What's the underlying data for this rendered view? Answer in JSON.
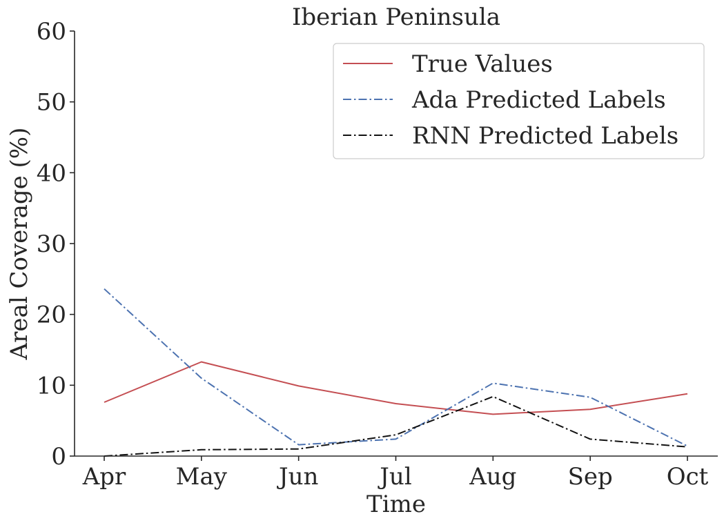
{
  "chart_data": {
    "type": "line",
    "title": "Iberian Peninsula",
    "xlabel": "Time",
    "ylabel": "Areal Coverage (%)",
    "categories": [
      "Apr",
      "May",
      "Jun",
      "Jul",
      "Aug",
      "Sep",
      "Oct"
    ],
    "ylim": [
      0,
      60
    ],
    "yticks": [
      "0",
      "10",
      "20",
      "30",
      "40",
      "50",
      "60"
    ],
    "grid": false,
    "legend_position": "top-right",
    "series": [
      {
        "name": "True Values",
        "color": "#c44e52",
        "dash": "solid",
        "values": [
          7.6,
          13.3,
          9.9,
          7.4,
          5.9,
          6.6,
          8.8
        ]
      },
      {
        "name": "Ada Predicted Labels",
        "color": "#4c72b0",
        "dash": "dashdot",
        "values": [
          23.6,
          11.0,
          1.6,
          2.4,
          10.3,
          8.3,
          1.4
        ]
      },
      {
        "name": "RNN Predicted Labels",
        "color": "#111111",
        "dash": "dashdot",
        "values": [
          0.0,
          0.9,
          1.0,
          3.0,
          8.4,
          2.4,
          1.3
        ]
      }
    ]
  }
}
